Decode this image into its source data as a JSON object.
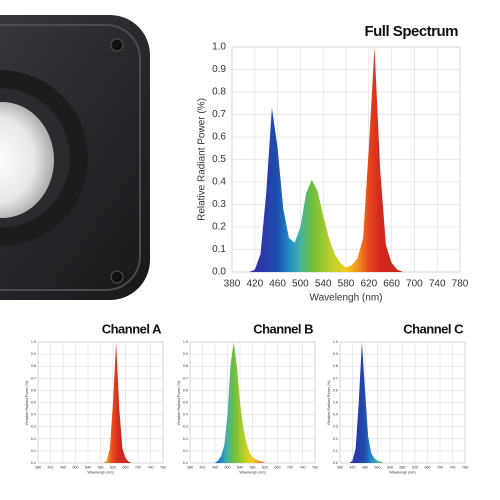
{
  "chart_data": [
    {
      "type": "area",
      "title": "Full Spectrum",
      "xlabel": "Wavelengh (nm)",
      "ylabel": "Relative Radiant Power (%)",
      "x": [
        380,
        390,
        400,
        410,
        420,
        430,
        440,
        450,
        460,
        470,
        480,
        490,
        500,
        510,
        520,
        530,
        540,
        550,
        560,
        570,
        580,
        590,
        600,
        610,
        620,
        630,
        640,
        650,
        660,
        670,
        680,
        690,
        700,
        710,
        720,
        730,
        740,
        750,
        760,
        770,
        780
      ],
      "values": [
        0,
        0,
        0,
        0,
        0.01,
        0.08,
        0.35,
        0.73,
        0.55,
        0.28,
        0.15,
        0.13,
        0.2,
        0.35,
        0.41,
        0.36,
        0.25,
        0.15,
        0.08,
        0.04,
        0.02,
        0.03,
        0.06,
        0.15,
        0.55,
        1.0,
        0.45,
        0.12,
        0.04,
        0.01,
        0,
        0,
        0,
        0,
        0,
        0,
        0,
        0,
        0,
        0,
        0
      ],
      "xlim": [
        380,
        780
      ],
      "ylim": [
        0,
        1
      ],
      "xticks": [
        380,
        420,
        460,
        500,
        540,
        580,
        620,
        660,
        700,
        740,
        780
      ],
      "yticks": [
        {
          "value": 0,
          "label": "0.0"
        },
        0.1,
        0.2,
        0.3,
        0.4,
        0.5,
        0.6,
        0.7,
        0.8,
        0.9,
        {
          "value": 1,
          "label": "1.0"
        }
      ],
      "grid": true
    },
    {
      "type": "area",
      "title": "Channel A",
      "xlabel": "Wavelengh (nm)",
      "ylabel": "Relative Radiant Power (%)",
      "x": [
        380,
        390,
        400,
        410,
        420,
        430,
        440,
        450,
        460,
        470,
        480,
        490,
        500,
        510,
        520,
        530,
        540,
        550,
        560,
        570,
        580,
        590,
        600,
        610,
        620,
        630,
        640,
        650,
        660,
        670,
        680,
        690,
        700,
        710,
        720,
        730,
        740,
        750,
        760,
        770,
        780
      ],
      "values": [
        0,
        0,
        0,
        0,
        0,
        0,
        0,
        0,
        0,
        0,
        0,
        0,
        0,
        0,
        0,
        0,
        0,
        0,
        0,
        0,
        0,
        0,
        0.02,
        0.12,
        0.5,
        1.0,
        0.45,
        0.12,
        0.04,
        0.01,
        0,
        0,
        0,
        0,
        0,
        0,
        0,
        0,
        0,
        0,
        0
      ],
      "xlim": [
        380,
        780
      ],
      "ylim": [
        0,
        1
      ],
      "xticks": [
        380,
        420,
        460,
        500,
        540,
        580,
        620,
        660,
        700,
        740,
        780
      ],
      "yticks": [
        {
          "value": 0,
          "label": "0.0"
        },
        0.1,
        0.2,
        0.3,
        0.4,
        0.5,
        0.6,
        0.7,
        0.8,
        0.9,
        {
          "value": 1,
          "label": "1.0"
        }
      ],
      "grid": true
    },
    {
      "type": "area",
      "title": "Channel B",
      "xlabel": "Wavelengh (nm)",
      "ylabel": "Relative Radiant Power (%)",
      "x": [
        380,
        390,
        400,
        410,
        420,
        430,
        440,
        450,
        460,
        470,
        480,
        490,
        500,
        510,
        520,
        530,
        540,
        550,
        560,
        570,
        580,
        590,
        600,
        610,
        620,
        630,
        640,
        650,
        660,
        670,
        680,
        690,
        700,
        710,
        720,
        730,
        740,
        750,
        760,
        770,
        780
      ],
      "values": [
        0,
        0,
        0,
        0,
        0,
        0,
        0,
        0,
        0,
        0.02,
        0.06,
        0.15,
        0.4,
        0.82,
        1.0,
        0.8,
        0.5,
        0.3,
        0.17,
        0.09,
        0.05,
        0.03,
        0.02,
        0.01,
        0,
        0,
        0,
        0,
        0,
        0,
        0,
        0,
        0,
        0,
        0,
        0,
        0,
        0,
        0,
        0,
        0
      ],
      "xlim": [
        380,
        780
      ],
      "ylim": [
        0,
        1
      ],
      "xticks": [
        380,
        420,
        460,
        500,
        540,
        580,
        620,
        660,
        700,
        740,
        780
      ],
      "yticks": [
        {
          "value": 0,
          "label": "0.0"
        },
        0.1,
        0.2,
        0.3,
        0.4,
        0.5,
        0.6,
        0.7,
        0.8,
        0.9,
        {
          "value": 1,
          "label": "1.0"
        }
      ],
      "grid": true
    },
    {
      "type": "area",
      "title": "Channel C",
      "xlabel": "Wavelengh (nm)",
      "ylabel": "Relative Radiant Power (%)",
      "x": [
        380,
        390,
        400,
        410,
        420,
        430,
        440,
        450,
        460,
        470,
        480,
        490,
        500,
        510,
        520,
        530,
        540,
        550,
        560,
        570,
        580,
        590,
        600,
        610,
        620,
        630,
        640,
        650,
        660,
        670,
        680,
        690,
        700,
        710,
        720,
        730,
        740,
        750,
        760,
        770,
        780
      ],
      "values": [
        0,
        0,
        0,
        0,
        0.02,
        0.12,
        0.5,
        1.0,
        0.6,
        0.22,
        0.08,
        0.04,
        0.02,
        0.01,
        0,
        0,
        0,
        0,
        0,
        0,
        0,
        0,
        0,
        0,
        0,
        0,
        0,
        0,
        0,
        0,
        0,
        0,
        0,
        0,
        0,
        0,
        0,
        0,
        0,
        0,
        0
      ],
      "xlim": [
        380,
        780
      ],
      "ylim": [
        0,
        1
      ],
      "xticks": [
        380,
        420,
        460,
        500,
        540,
        580,
        620,
        660,
        700,
        740,
        780
      ],
      "yticks": [
        {
          "value": 0,
          "label": "0.0"
        },
        0.1,
        0.2,
        0.3,
        0.4,
        0.5,
        0.6,
        0.7,
        0.8,
        0.9,
        {
          "value": 1,
          "label": "1.0"
        }
      ],
      "grid": true
    }
  ]
}
